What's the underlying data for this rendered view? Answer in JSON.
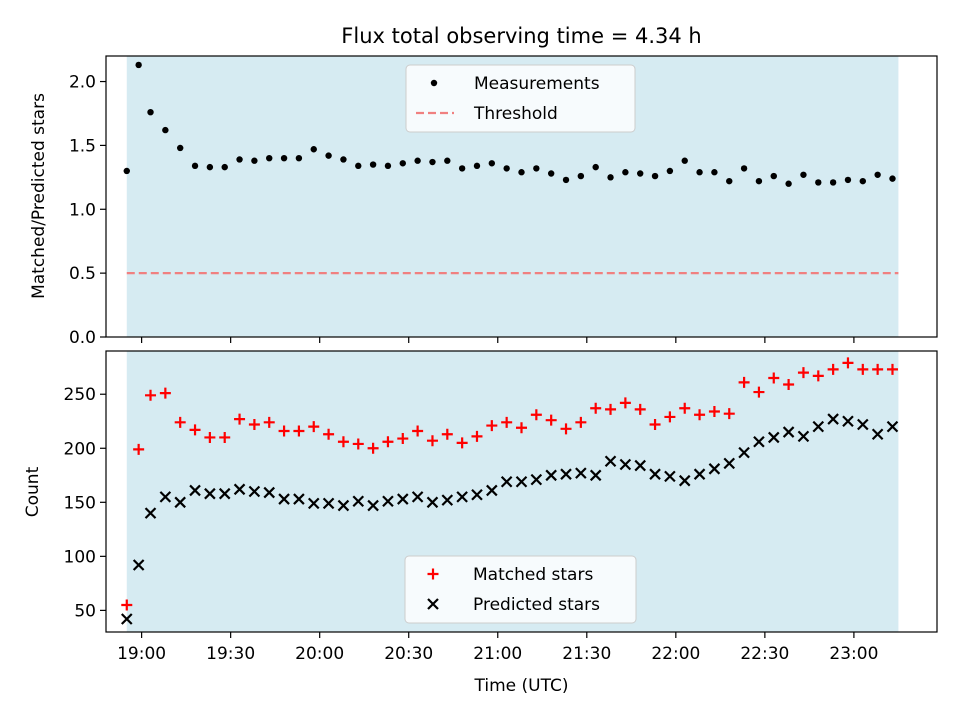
{
  "colors": {
    "span": "#add8e6",
    "measurement": "#000000",
    "threshold": "#f08080",
    "matched": "#ff0000",
    "predicted": "#000000"
  },
  "chart_data": [
    {
      "type": "scatter",
      "title": "Flux total observing time = 4.34 h",
      "xlabel": "",
      "ylabel": "Matched/Predicted stars",
      "xlim": [
        "18:48",
        "23:28"
      ],
      "ylim": [
        0,
        2.2
      ],
      "yticks": [
        0.0,
        0.5,
        1.0,
        1.5,
        2.0
      ],
      "ytick_labels": [
        "0.0",
        "0.5",
        "1.0",
        "1.5",
        "2.0"
      ],
      "xtick_labels": [],
      "shaded_span": [
        "18:55",
        "23:15"
      ],
      "legend_position": "upper center",
      "legend": [
        "Measurements",
        "Threshold"
      ],
      "threshold": 0.5,
      "series": [
        {
          "name": "Measurements",
          "marker": "dot",
          "x": [
            "18:55",
            "18:59",
            "19:03",
            "19:08",
            "19:13",
            "19:18",
            "19:23",
            "19:28",
            "19:33",
            "19:38",
            "19:43",
            "19:48",
            "19:53",
            "19:58",
            "20:03",
            "20:08",
            "20:13",
            "20:18",
            "20:23",
            "20:28",
            "20:33",
            "20:38",
            "20:43",
            "20:48",
            "20:53",
            "20:58",
            "21:03",
            "21:08",
            "21:13",
            "21:18",
            "21:23",
            "21:28",
            "21:33",
            "21:38",
            "21:43",
            "21:48",
            "21:53",
            "21:58",
            "22:03",
            "22:08",
            "22:13",
            "22:18",
            "22:23",
            "22:28",
            "22:33",
            "22:38",
            "22:43",
            "22:48",
            "22:53",
            "22:58",
            "23:03",
            "23:08",
            "23:13"
          ],
          "values": [
            1.3,
            2.13,
            1.76,
            1.62,
            1.48,
            1.34,
            1.33,
            1.33,
            1.39,
            1.38,
            1.4,
            1.4,
            1.4,
            1.47,
            1.42,
            1.39,
            1.34,
            1.35,
            1.34,
            1.36,
            1.38,
            1.37,
            1.38,
            1.32,
            1.34,
            1.36,
            1.32,
            1.29,
            1.32,
            1.28,
            1.23,
            1.26,
            1.33,
            1.25,
            1.29,
            1.28,
            1.26,
            1.3,
            1.38,
            1.29,
            1.29,
            1.22,
            1.32,
            1.22,
            1.26,
            1.2,
            1.27,
            1.21,
            1.21,
            1.23,
            1.22,
            1.27,
            1.24
          ]
        },
        {
          "name": "Threshold",
          "marker": "dashed-line",
          "x": [
            "18:55",
            "23:15"
          ],
          "values": [
            0.5,
            0.5
          ]
        }
      ]
    },
    {
      "type": "scatter",
      "title": "",
      "xlabel": "Time (UTC)",
      "ylabel": "Count",
      "xlim": [
        "18:48",
        "23:28"
      ],
      "ylim": [
        30,
        290
      ],
      "yticks": [
        50,
        100,
        150,
        200,
        250
      ],
      "ytick_labels": [
        "50",
        "100",
        "150",
        "200",
        "250"
      ],
      "xticks": [
        "19:00",
        "19:30",
        "20:00",
        "20:30",
        "21:00",
        "21:30",
        "22:00",
        "22:30",
        "23:00"
      ],
      "xtick_labels": [
        "19:00",
        "19:30",
        "20:00",
        "20:30",
        "21:00",
        "21:30",
        "22:00",
        "22:30",
        "23:00"
      ],
      "shaded_span": [
        "18:55",
        "23:15"
      ],
      "legend_position": "lower center",
      "legend": [
        "Matched stars",
        "Predicted stars"
      ],
      "series": [
        {
          "name": "Matched stars",
          "marker": "plus",
          "x": [
            "18:55",
            "18:59",
            "19:03",
            "19:08",
            "19:13",
            "19:18",
            "19:23",
            "19:28",
            "19:33",
            "19:38",
            "19:43",
            "19:48",
            "19:53",
            "19:58",
            "20:03",
            "20:08",
            "20:13",
            "20:18",
            "20:23",
            "20:28",
            "20:33",
            "20:38",
            "20:43",
            "20:48",
            "20:53",
            "20:58",
            "21:03",
            "21:08",
            "21:13",
            "21:18",
            "21:23",
            "21:28",
            "21:33",
            "21:38",
            "21:43",
            "21:48",
            "21:53",
            "21:58",
            "22:03",
            "22:08",
            "22:13",
            "22:18",
            "22:23",
            "22:28",
            "22:33",
            "22:38",
            "22:43",
            "22:48",
            "22:53",
            "22:58",
            "23:03",
            "23:08",
            "23:13"
          ],
          "values": [
            55,
            199,
            249,
            251,
            224,
            217,
            210,
            210,
            227,
            222,
            224,
            216,
            216,
            220,
            213,
            206,
            204,
            200,
            206,
            209,
            216,
            207,
            213,
            205,
            211,
            221,
            224,
            219,
            231,
            226,
            218,
            224,
            237,
            236,
            242,
            236,
            222,
            229,
            237,
            231,
            234,
            232,
            261,
            252,
            265,
            259,
            270,
            267,
            273,
            279,
            273,
            273,
            273
          ]
        },
        {
          "name": "Predicted stars",
          "marker": "x",
          "x": [
            "18:55",
            "18:59",
            "19:03",
            "19:08",
            "19:13",
            "19:18",
            "19:23",
            "19:28",
            "19:33",
            "19:38",
            "19:43",
            "19:48",
            "19:53",
            "19:58",
            "20:03",
            "20:08",
            "20:13",
            "20:18",
            "20:23",
            "20:28",
            "20:33",
            "20:38",
            "20:43",
            "20:48",
            "20:53",
            "20:58",
            "21:03",
            "21:08",
            "21:13",
            "21:18",
            "21:23",
            "21:28",
            "21:33",
            "21:38",
            "21:43",
            "21:48",
            "21:53",
            "21:58",
            "22:03",
            "22:08",
            "22:13",
            "22:18",
            "22:23",
            "22:28",
            "22:33",
            "22:38",
            "22:43",
            "22:48",
            "22:53",
            "22:58",
            "23:03",
            "23:08",
            "23:13"
          ],
          "values": [
            42,
            92,
            140,
            155,
            150,
            161,
            158,
            158,
            162,
            160,
            159,
            153,
            153,
            149,
            149,
            147,
            151,
            147,
            151,
            153,
            155,
            150,
            152,
            155,
            157,
            161,
            169,
            169,
            171,
            175,
            176,
            177,
            175,
            188,
            185,
            184,
            176,
            174,
            170,
            176,
            181,
            186,
            196,
            206,
            210,
            215,
            211,
            220,
            227,
            225,
            222,
            213,
            220
          ]
        }
      ]
    }
  ]
}
